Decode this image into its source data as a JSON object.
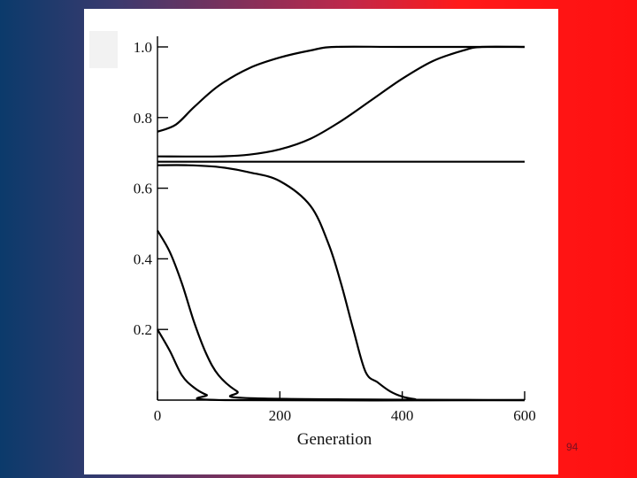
{
  "slide": {
    "number": "94"
  },
  "colors": {
    "background_left": "#0b3a6b",
    "background_right": "#ff1010",
    "line": "#000000"
  },
  "chart_data": {
    "type": "line",
    "title": "",
    "xlabel": "Generation",
    "ylabel": "",
    "xlim": [
      0,
      600
    ],
    "ylim": [
      0,
      1.0
    ],
    "x_ticks": [
      {
        "value": 0,
        "label": "0"
      },
      {
        "value": 200,
        "label": "200"
      },
      {
        "value": 400,
        "label": "400"
      },
      {
        "value": 600,
        "label": "600"
      }
    ],
    "y_ticks": [
      {
        "value": 0.2,
        "label": "0.2"
      },
      {
        "value": 0.4,
        "label": "0.4"
      },
      {
        "value": 0.6,
        "label": "0.6"
      },
      {
        "value": 0.8,
        "label": "0.8"
      },
      {
        "value": 1.0,
        "label": "1.0"
      }
    ],
    "grid": false,
    "series": [
      {
        "x": [
          0,
          30,
          60,
          100,
          150,
          200,
          250,
          290,
          400,
          600
        ],
        "y": [
          0.76,
          0.78,
          0.83,
          0.89,
          0.94,
          0.97,
          0.99,
          1.0,
          1.0,
          1.0
        ]
      },
      {
        "x": [
          0,
          100,
          150,
          200,
          250,
          300,
          350,
          400,
          450,
          500,
          530,
          600
        ],
        "y": [
          0.69,
          0.69,
          0.695,
          0.71,
          0.74,
          0.79,
          0.85,
          0.91,
          0.96,
          0.99,
          1.0,
          1.0
        ]
      },
      {
        "x": [
          0,
          600
        ],
        "y": [
          0.675,
          0.675
        ]
      },
      {
        "x": [
          0,
          50,
          100,
          150,
          200,
          250,
          280,
          300,
          320,
          340,
          360,
          380,
          400,
          420,
          440,
          600
        ],
        "y": [
          0.665,
          0.665,
          0.66,
          0.645,
          0.62,
          0.55,
          0.44,
          0.33,
          0.2,
          0.08,
          0.05,
          0.025,
          0.01,
          0.003,
          0.0,
          0.0
        ]
      },
      {
        "x": [
          0,
          20,
          40,
          60,
          80,
          100,
          130,
          160,
          600
        ],
        "y": [
          0.48,
          0.42,
          0.33,
          0.22,
          0.13,
          0.07,
          0.025,
          0.005,
          0.0
        ]
      },
      {
        "x": [
          0,
          20,
          40,
          60,
          80,
          110,
          600
        ],
        "y": [
          0.2,
          0.14,
          0.07,
          0.035,
          0.015,
          0.0,
          0.0
        ]
      }
    ]
  }
}
